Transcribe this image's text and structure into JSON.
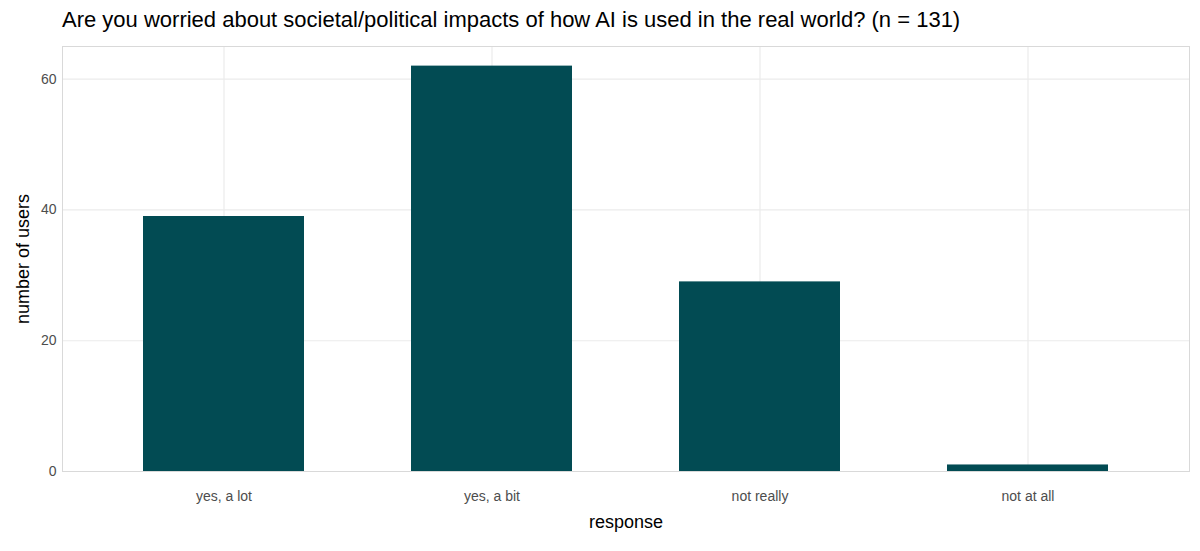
{
  "chart_data": {
    "type": "bar",
    "title": "Are you worried about societal/political impacts of how AI is used in the real world? (n = 131)",
    "x_label": "response",
    "y_label": "number of users",
    "categories": [
      "yes, a lot",
      "yes, a bit",
      "not really",
      "not at all"
    ],
    "values": [
      39,
      62,
      29,
      1
    ],
    "color": "#024b53",
    "ylim": [
      0,
      65
    ],
    "yticks": [
      0,
      20,
      40,
      60
    ],
    "grid": true
  }
}
